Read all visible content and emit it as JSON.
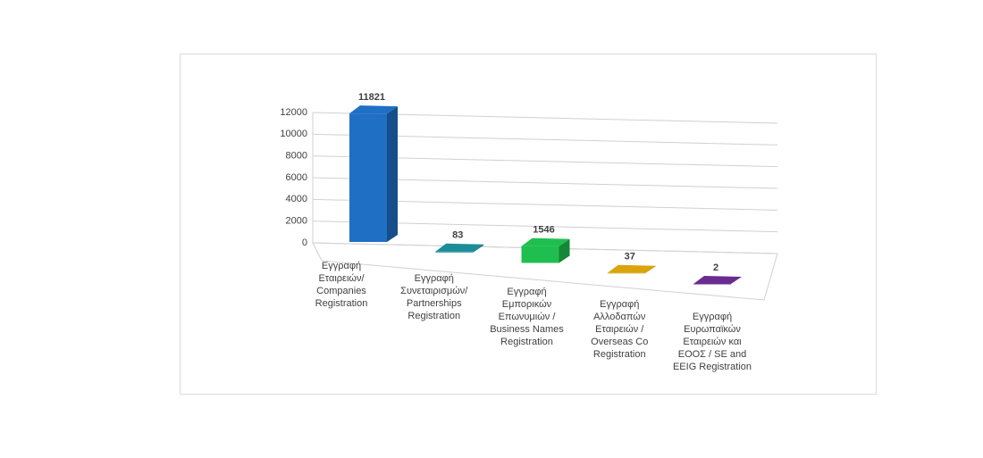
{
  "chart_data": {
    "type": "bar3d",
    "categories": [
      "Εγγραφή Εταιρειών/ Companies Registration",
      "Εγγραφή Συνεταιρισμών/ Partnerships Registration",
      "Εγγραφή Εμπορικών Επωνυμιών / Business Names Registration",
      "Εγγραφή Αλλοδαπών Εταιρειών / Overseas Co Registration",
      "Εγγραφή Ευρωπαϊκών Εταιρειών και ΕΟΟΣ / SE and EEIG Registration"
    ],
    "values": [
      11821,
      83,
      1546,
      37,
      2
    ],
    "colors": [
      "#1f6fc5",
      "#1a8d99",
      "#1fbf4f",
      "#d9a40c",
      "#6a2c91"
    ],
    "ylim": [
      0,
      12000
    ],
    "yticks": [
      0,
      2000,
      4000,
      6000,
      8000,
      10000,
      12000
    ],
    "grid": true
  }
}
